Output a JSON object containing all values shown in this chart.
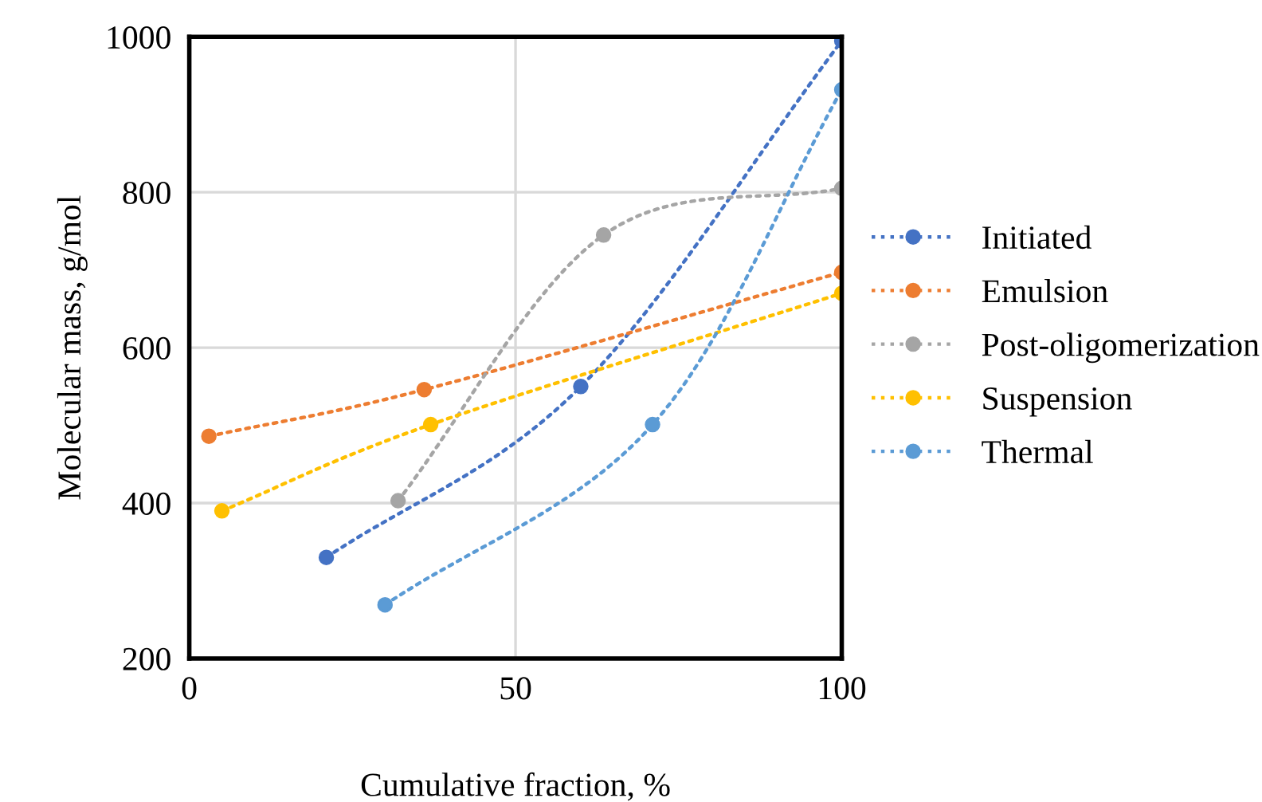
{
  "chart_data": {
    "type": "line",
    "xlabel": "Cumulative fraction, %",
    "ylabel": "Molecular mass, g/mol",
    "xlim": [
      0,
      100
    ],
    "xticks": [
      0,
      50,
      100
    ],
    "ylim": [
      200,
      1000
    ],
    "yticks": [
      200,
      400,
      600,
      800,
      1000
    ],
    "grid": true,
    "legend": "right",
    "marker": "circle",
    "line_style": "dotted",
    "series": [
      {
        "name": "Initiated",
        "color": "#4472c4",
        "x": [
          21,
          60,
          100
        ],
        "values": [
          330,
          550,
          995
        ]
      },
      {
        "name": "Emulsion",
        "color": "#ed7d31",
        "x": [
          3,
          36,
          100
        ],
        "values": [
          486,
          546,
          697
        ]
      },
      {
        "name": "Post-oligomerization",
        "color": "#a5a5a5",
        "x": [
          32,
          63.5,
          100
        ],
        "values": [
          403,
          745,
          805
        ]
      },
      {
        "name": "Suspension",
        "color": "#ffc000",
        "x": [
          5,
          37,
          100
        ],
        "values": [
          390,
          501,
          670
        ]
      },
      {
        "name": "Thermal",
        "color": "#5b9bd5",
        "x": [
          30,
          71,
          100
        ],
        "values": [
          269,
          501,
          932
        ]
      }
    ]
  }
}
